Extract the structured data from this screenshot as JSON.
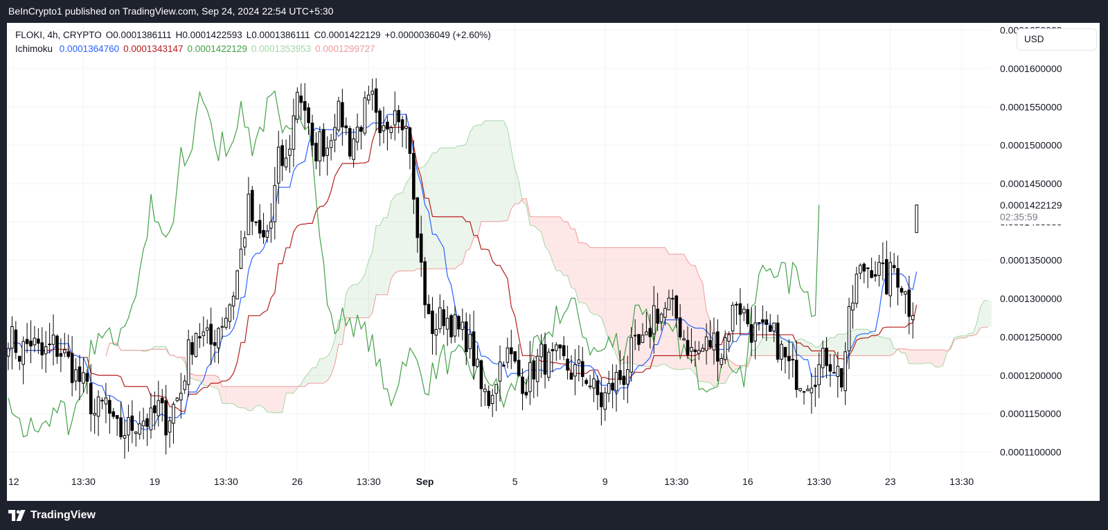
{
  "header": {
    "publish_text": "BeInCrypto1 published on TradingView.com, Sep 24, 2024 22:54 UTC+5:30"
  },
  "legend": {
    "symbol": "FLOKI, 4h, CRYPTO",
    "open": "O0.0001386111",
    "high": "H0.0001422593",
    "low": "L0.0001386111",
    "close": "C0.0001422129",
    "change": "+0.0000036049 (+2.60%)",
    "indicator_name": "Ichimoku",
    "indicator_values": [
      {
        "text": "0.0001364760",
        "color": "#2962ff"
      },
      {
        "text": "0.0001343147",
        "color": "#b71c1c"
      },
      {
        "text": "0.0001422129",
        "color": "#43a047"
      },
      {
        "text": "0.0001353953",
        "color": "#a5d6a7"
      },
      {
        "text": "0.0001299727",
        "color": "#ef9a9a"
      }
    ]
  },
  "currency_label": "USD",
  "price_tag": {
    "value": "0.0001422129",
    "countdown": "02:35:59"
  },
  "footer": {
    "brand": "TradingView"
  },
  "chart_data": {
    "type": "candlestick",
    "symbol": "FLOKI",
    "timeframe": "4h",
    "y_ticks": [
      "0.0001100000",
      "0.0001150000",
      "0.0001200000",
      "0.0001250000",
      "0.0001300000",
      "0.0001350000",
      "0.0001400000",
      "0.0001450000",
      "0.0001500000",
      "0.0001550000",
      "0.0001600000",
      "0.0001650000"
    ],
    "y_tick_values": [
      0.00011,
      0.000115,
      0.00012,
      0.000125,
      0.00013,
      0.000135,
      0.00014,
      0.000145,
      0.00015,
      0.000155,
      0.00016,
      0.000165
    ],
    "ylim": [
      0.00010725,
      0.00016595
    ],
    "x_ticks": [
      {
        "label": "12",
        "bar": 0
      },
      {
        "label": "13:30",
        "bar": 20
      },
      {
        "label": "19",
        "bar": 39
      },
      {
        "label": "13:30",
        "bar": 58
      },
      {
        "label": "26",
        "bar": 77
      },
      {
        "label": "13:30",
        "bar": 96
      },
      {
        "label": "Sep",
        "bar": 111
      },
      {
        "label": "5",
        "bar": 135
      },
      {
        "label": "9",
        "bar": 159
      },
      {
        "label": "13:30",
        "bar": 178
      },
      {
        "label": "16",
        "bar": 197
      },
      {
        "label": "13:30",
        "bar": 216
      },
      {
        "label": "23",
        "bar": 235
      },
      {
        "label": "13:30",
        "bar": 254
      }
    ],
    "bar_count": 243,
    "cloud_shift": 26,
    "last_price": 0.0001422129,
    "colors": {
      "bull_body": "#ffffff",
      "bear_body": "#000000",
      "wick": "#000000",
      "tenkan": "#2962ff",
      "kijun": "#b71c1c",
      "chikou": "#43a047",
      "span_a": "#a5d6a7",
      "span_b": "#ef9a9a",
      "cloud_bull": "rgba(67,160,71,0.10)",
      "cloud_bear": "rgba(244,67,54,0.12)"
    },
    "close_path": [
      [
        0,
        0.0001255
      ],
      [
        3,
        0.000123
      ],
      [
        6,
        0.0001245
      ],
      [
        9,
        0.0001225
      ],
      [
        12,
        0.000124
      ],
      [
        15,
        0.0001225
      ],
      [
        18,
        0.00012
      ],
      [
        21,
        0.000118
      ],
      [
        23,
        0.000115
      ],
      [
        26,
        0.0001165
      ],
      [
        28,
        0.000113
      ],
      [
        30,
        0.0001125
      ],
      [
        33,
        0.0001135
      ],
      [
        35,
        0.0001145
      ],
      [
        38,
        0.000114
      ],
      [
        40,
        0.0001158
      ],
      [
        42,
        0.000114
      ],
      [
        44,
        0.000116
      ],
      [
        46,
        0.000118
      ],
      [
        48,
        0.000123
      ],
      [
        50,
        0.000126
      ],
      [
        52,
        0.000125
      ],
      [
        54,
        0.000124
      ],
      [
        56,
        0.0001265
      ],
      [
        58,
        0.000128
      ],
      [
        60,
        0.000131
      ],
      [
        62,
        0.000136
      ],
      [
        64,
        0.000142
      ],
      [
        66,
        0.0001385
      ],
      [
        68,
        0.0001375
      ],
      [
        70,
        0.00014
      ],
      [
        72,
        0.000148
      ],
      [
        74,
        0.0001475
      ],
      [
        76,
        0.0001535
      ],
      [
        77,
        0.0001575
      ],
      [
        79,
        0.000155
      ],
      [
        81,
        0.0001485
      ],
      [
        83,
        0.0001505
      ],
      [
        85,
        0.00015
      ],
      [
        87,
        0.000154
      ],
      [
        89,
        0.0001535
      ],
      [
        91,
        0.00015
      ],
      [
        93,
        0.000152
      ],
      [
        95,
        0.0001545
      ],
      [
        97,
        0.0001555
      ],
      [
        99,
        0.00015
      ],
      [
        101,
        0.000153
      ],
      [
        103,
        0.0001555
      ],
      [
        105,
        0.000154
      ],
      [
        107,
        0.00015
      ],
      [
        108,
        0.000142
      ],
      [
        110,
        0.000134
      ],
      [
        112,
        0.0001265
      ],
      [
        114,
        0.0001265
      ],
      [
        116,
        0.000128
      ],
      [
        118,
        0.000127
      ],
      [
        120,
        0.0001255
      ],
      [
        122,
        0.000125
      ],
      [
        124,
        0.0001225
      ],
      [
        126,
        0.000118
      ],
      [
        128,
        0.000117
      ],
      [
        130,
        0.00012
      ],
      [
        132,
        0.000123
      ],
      [
        134,
        0.000122
      ],
      [
        136,
        0.00012
      ],
      [
        138,
        0.000119
      ],
      [
        140,
        0.000121
      ],
      [
        142,
        0.0001225
      ],
      [
        144,
        0.0001215
      ],
      [
        146,
        0.000122
      ],
      [
        148,
        0.0001215
      ],
      [
        150,
        0.0001205
      ],
      [
        152,
        0.0001205
      ],
      [
        154,
        0.00012
      ],
      [
        156,
        0.000118
      ],
      [
        158,
        0.0001165
      ],
      [
        160,
        0.000118
      ],
      [
        162,
        0.0001195
      ],
      [
        164,
        0.00012
      ],
      [
        166,
        0.000123
      ],
      [
        168,
        0.0001235
      ],
      [
        170,
        0.000124
      ],
      [
        172,
        0.0001285
      ],
      [
        174,
        0.000128
      ],
      [
        176,
        0.000129
      ],
      [
        178,
        0.0001275
      ],
      [
        180,
        0.000125
      ],
      [
        182,
        0.000123
      ],
      [
        184,
        0.000123
      ],
      [
        186,
        0.000124
      ],
      [
        188,
        0.0001245
      ],
      [
        190,
        0.000123
      ],
      [
        192,
        0.0001265
      ],
      [
        194,
        0.00013
      ],
      [
        196,
        0.000128
      ],
      [
        198,
        0.000126
      ],
      [
        200,
        0.0001255
      ],
      [
        202,
        0.000125
      ],
      [
        204,
        0.000125
      ],
      [
        206,
        0.000123
      ],
      [
        208,
        0.000121
      ],
      [
        210,
        0.00012
      ],
      [
        212,
        0.0001195
      ],
      [
        214,
        0.00012
      ],
      [
        216,
        0.000121
      ],
      [
        218,
        0.0001225
      ],
      [
        220,
        0.0001215
      ],
      [
        222,
        0.0001195
      ],
      [
        224,
        0.000127
      ],
      [
        226,
        0.0001325
      ],
      [
        228,
        0.000134
      ],
      [
        230,
        0.0001345
      ],
      [
        232,
        0.0001335
      ],
      [
        234,
        0.000132
      ],
      [
        236,
        0.000134
      ],
      [
        238,
        0.000132
      ],
      [
        240,
        0.000129
      ],
      [
        242,
        0.00013
      ],
      [
        244,
        0.000132
      ],
      [
        246,
        0.0001325
      ],
      [
        248,
        0.000133
      ],
      [
        250,
        0.000133
      ],
      [
        252,
        0.0001345
      ],
      [
        254,
        0.0001385
      ],
      [
        256,
        0.0001422129
      ]
    ]
  }
}
